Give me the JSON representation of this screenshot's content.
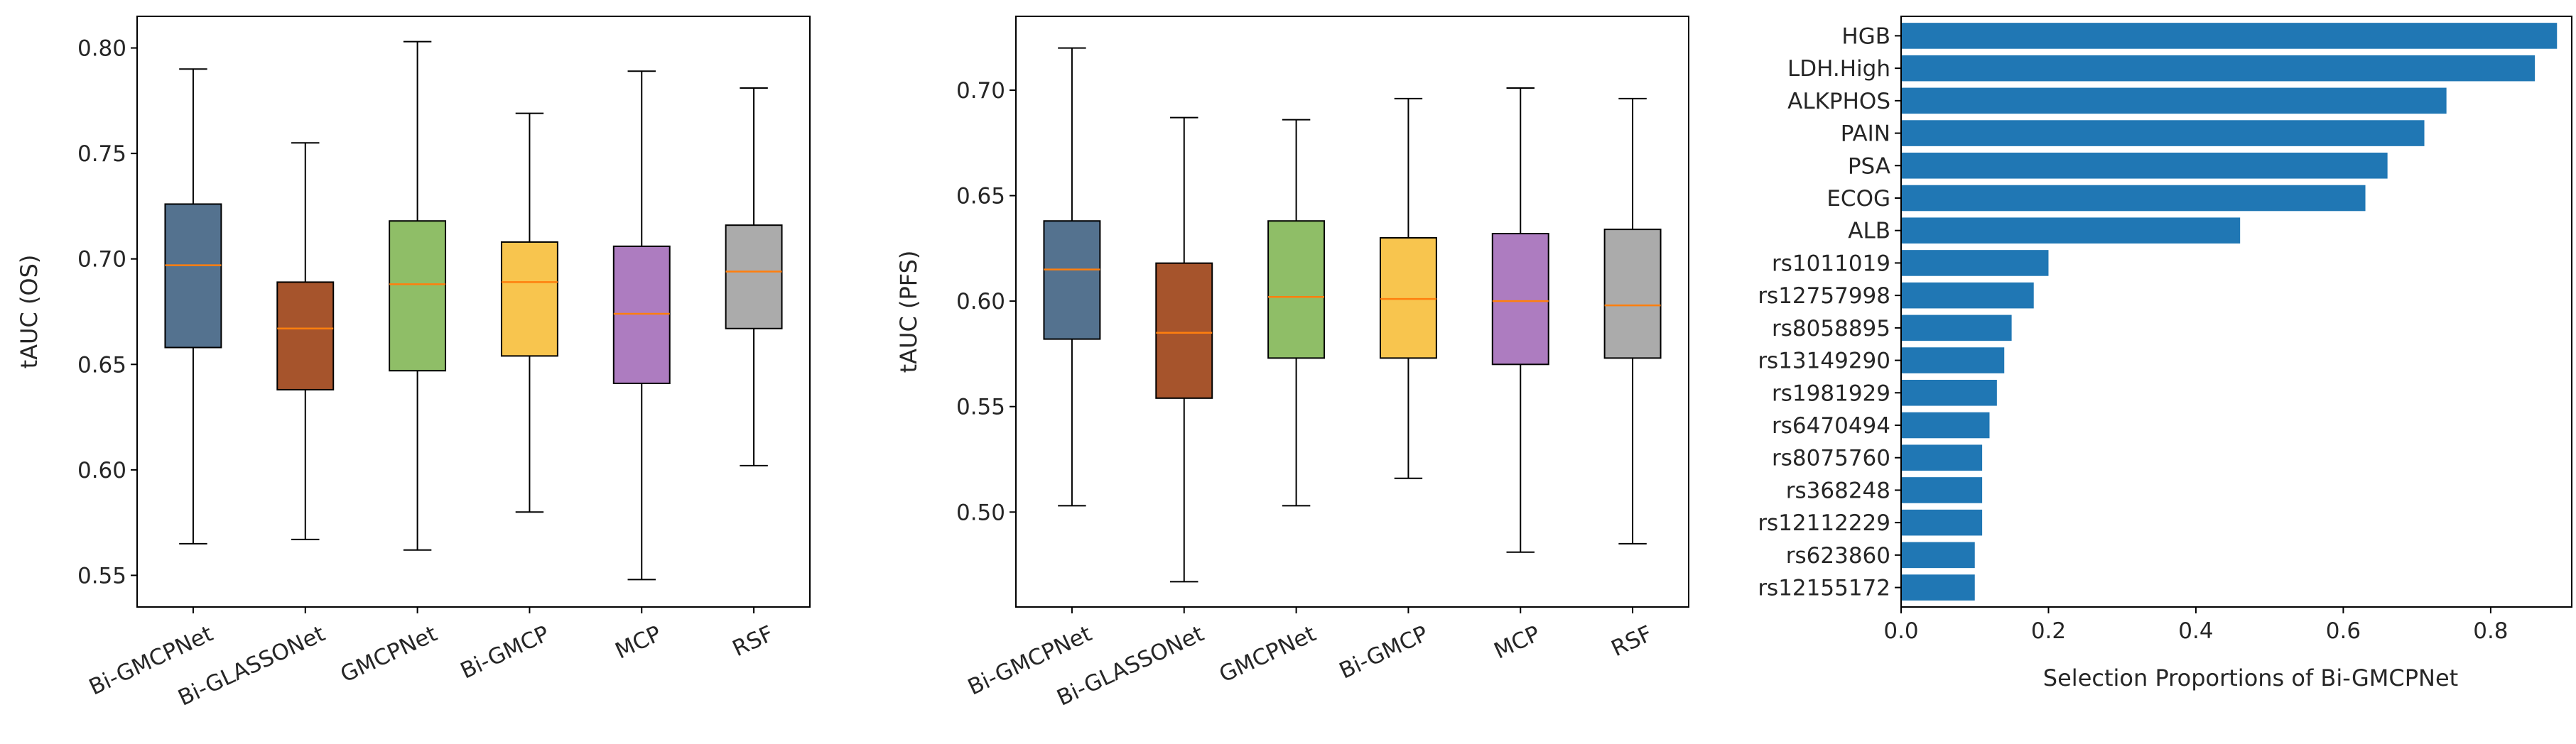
{
  "chart_data": [
    {
      "type": "box",
      "title": "",
      "xlabel": "",
      "ylabel": "tAUC (OS)",
      "ylim": [
        0.535,
        0.815
      ],
      "yticks": [
        0.55,
        0.6,
        0.65,
        0.7,
        0.75,
        0.8
      ],
      "ytick_labels": [
        "0.55",
        "0.60",
        "0.65",
        "0.70",
        "0.75",
        "0.80"
      ],
      "categories": [
        "Bi-GMCPNet",
        "Bi-GLASSONet",
        "GMCPNet",
        "Bi-GMCP",
        "MCP",
        "RSF"
      ],
      "boxes": [
        {
          "whisker_low": 0.565,
          "q1": 0.658,
          "median": 0.697,
          "q3": 0.726,
          "whisker_high": 0.79
        },
        {
          "whisker_low": 0.567,
          "q1": 0.638,
          "median": 0.667,
          "q3": 0.689,
          "whisker_high": 0.755
        },
        {
          "whisker_low": 0.562,
          "q1": 0.647,
          "median": 0.688,
          "q3": 0.718,
          "whisker_high": 0.803
        },
        {
          "whisker_low": 0.58,
          "q1": 0.654,
          "median": 0.689,
          "q3": 0.708,
          "whisker_high": 0.769
        },
        {
          "whisker_low": 0.548,
          "q1": 0.641,
          "median": 0.674,
          "q3": 0.706,
          "whisker_high": 0.789
        },
        {
          "whisker_low": 0.602,
          "q1": 0.667,
          "median": 0.694,
          "q3": 0.716,
          "whisker_high": 0.781
        }
      ]
    },
    {
      "type": "box",
      "title": "",
      "xlabel": "",
      "ylabel": "tAUC (PFS)",
      "ylim": [
        0.455,
        0.735
      ],
      "yticks": [
        0.5,
        0.55,
        0.6,
        0.65,
        0.7
      ],
      "ytick_labels": [
        "0.50",
        "0.55",
        "0.60",
        "0.65",
        "0.70"
      ],
      "categories": [
        "Bi-GMCPNet",
        "Bi-GLASSONet",
        "GMCPNet",
        "Bi-GMCP",
        "MCP",
        "RSF"
      ],
      "boxes": [
        {
          "whisker_low": 0.503,
          "q1": 0.582,
          "median": 0.615,
          "q3": 0.638,
          "whisker_high": 0.72
        },
        {
          "whisker_low": 0.467,
          "q1": 0.554,
          "median": 0.585,
          "q3": 0.618,
          "whisker_high": 0.687
        },
        {
          "whisker_low": 0.503,
          "q1": 0.573,
          "median": 0.602,
          "q3": 0.638,
          "whisker_high": 0.686
        },
        {
          "whisker_low": 0.516,
          "q1": 0.573,
          "median": 0.601,
          "q3": 0.63,
          "whisker_high": 0.696
        },
        {
          "whisker_low": 0.481,
          "q1": 0.57,
          "median": 0.6,
          "q3": 0.632,
          "whisker_high": 0.701
        },
        {
          "whisker_low": 0.485,
          "q1": 0.573,
          "median": 0.598,
          "q3": 0.634,
          "whisker_high": 0.696
        }
      ]
    },
    {
      "type": "barh",
      "title": "",
      "xlabel": "Selection Proportions of Bi-GMCPNet",
      "ylabel": "",
      "xlim": [
        0.0,
        0.91
      ],
      "xticks": [
        0.0,
        0.2,
        0.4,
        0.6,
        0.8
      ],
      "xtick_labels": [
        "0.0",
        "0.2",
        "0.4",
        "0.6",
        "0.8"
      ],
      "categories": [
        "HGB",
        "LDH.High",
        "ALKPHOS",
        "PAIN",
        "PSA",
        "ECOG",
        "ALB",
        "rs1011019",
        "rs12757998",
        "rs8058895",
        "rs13149290",
        "rs1981929",
        "rs6470494",
        "rs8075760",
        "rs368248",
        "rs12112229",
        "rs623860",
        "rs12155172"
      ],
      "values": [
        0.89,
        0.86,
        0.74,
        0.71,
        0.66,
        0.63,
        0.46,
        0.2,
        0.18,
        0.15,
        0.14,
        0.13,
        0.12,
        0.11,
        0.11,
        0.11,
        0.1,
        0.1
      ]
    }
  ],
  "colors": {
    "box_fills": [
      "#54728f",
      "#a6542c",
      "#8fbe67",
      "#f8c54e",
      "#ad7cc0",
      "#ababab"
    ],
    "median": "#ff7f0e",
    "bar": "#2077b4",
    "axis": "#000000",
    "whisker": "#000000"
  }
}
